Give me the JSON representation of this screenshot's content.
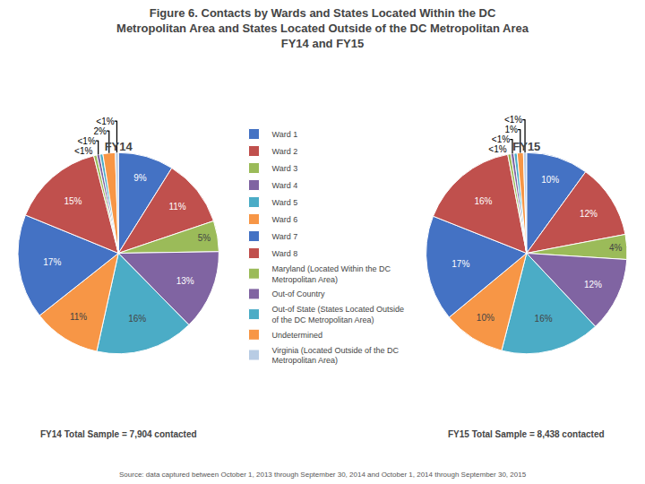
{
  "chart_data": {
    "type": "pie",
    "title": "Figure 6. Contacts by Wards and States Located Within the DC\nMetropolitan Area and States Located Outside of the DC Metropolitan Area\nFY14 and FY15",
    "categories": [
      "Ward 1",
      "Ward 2",
      "Ward 3",
      "Ward 4",
      "Ward 5",
      "Ward 6",
      "Ward 7",
      "Ward 8",
      "Maryland (Located Within the DC\nMetropolitan Area)",
      "Out-of Country",
      "Out-of State (States Located Outside\nof the DC Metropolitan Area)",
      "Undetermined",
      "Virginia (Located Outside of the DC\nMetropolitan Area)"
    ],
    "colors": [
      "#4472C4",
      "#C0504D",
      "#9BBB59",
      "#8064A2",
      "#4BACC6",
      "#F79646",
      "#4472C4",
      "#C0504D",
      "#9BBB59",
      "#8064A2",
      "#4BACC6",
      "#F79646",
      "#B8CCE4"
    ],
    "legend": "center",
    "data_labels": true,
    "series": [
      {
        "name": "FY14",
        "values": [
          9,
          11,
          5,
          13,
          16,
          11,
          17,
          15,
          0.5,
          0.5,
          0.5,
          2,
          0.5
        ],
        "value_labels": [
          "9%",
          "11%",
          "5%",
          "13%",
          "16%",
          "11%",
          "17%",
          "15%",
          "<1%",
          "<1%",
          null,
          "2%",
          "<1%"
        ],
        "annotations": [
          "FY14 Total Sample = 7,904 contacted"
        ]
      },
      {
        "name": "FY15",
        "values": [
          10,
          12,
          4,
          12,
          16,
          10,
          17,
          16,
          0.5,
          0.5,
          0.5,
          1,
          0.5
        ],
        "value_labels": [
          "10%",
          "12%",
          "4%",
          "12%",
          "16%",
          "10%",
          "17%",
          "16%",
          "<1%",
          "<1%",
          null,
          "1%",
          "<1%"
        ],
        "annotations": [
          "FY15 Total Sample = 8,438 contacted"
        ]
      }
    ],
    "annotations": [
      "Source: data captured between October 1, 2013 through September 30, 2014 and October 1, 2014 through September 30, 2015"
    ]
  }
}
